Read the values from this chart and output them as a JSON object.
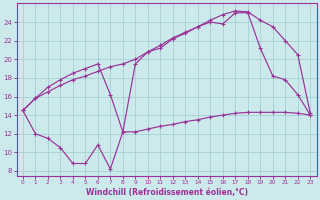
{
  "bg_color": "#cce9eb",
  "grid_color": "#aad4d8",
  "line_color": "#993399",
  "xlabel": "Windchill (Refroidissement éolien,°C)",
  "xlim": [
    -0.5,
    23.5
  ],
  "ylim": [
    7.5,
    26.0
  ],
  "yticks": [
    8,
    10,
    12,
    14,
    16,
    18,
    20,
    22,
    24
  ],
  "xticks": [
    0,
    1,
    2,
    3,
    4,
    5,
    6,
    7,
    8,
    9,
    10,
    11,
    12,
    13,
    14,
    15,
    16,
    17,
    18,
    19,
    20,
    21,
    22,
    23
  ],
  "line1_x": [
    0,
    1,
    2,
    3,
    4,
    5,
    6,
    7,
    8,
    9,
    10,
    11,
    12,
    13,
    14,
    15,
    16,
    17,
    18,
    19,
    20,
    21,
    22,
    23
  ],
  "line1_y": [
    14.5,
    15.8,
    16.5,
    17.2,
    17.8,
    18.2,
    18.7,
    19.2,
    19.5,
    20.0,
    20.8,
    21.2,
    22.2,
    22.8,
    23.5,
    24.2,
    24.8,
    25.2,
    25.1,
    24.2,
    23.5,
    22.0,
    20.5,
    14.2
  ],
  "line2_x": [
    0,
    1,
    2,
    3,
    4,
    5,
    6,
    7,
    8,
    9,
    10,
    11,
    12,
    13,
    14,
    15,
    16,
    17,
    18,
    19,
    20,
    21,
    22,
    23
  ],
  "line2_y": [
    14.5,
    15.8,
    17.0,
    17.8,
    18.5,
    19.0,
    19.5,
    16.2,
    12.2,
    19.5,
    20.8,
    21.5,
    22.3,
    22.9,
    23.5,
    24.0,
    23.8,
    25.0,
    25.0,
    21.2,
    18.2,
    17.8,
    16.2,
    14.0
  ],
  "line3_x": [
    0,
    1,
    2,
    3,
    4,
    5,
    6,
    7,
    8,
    9,
    10,
    11,
    12,
    13,
    14,
    15,
    16,
    17,
    18,
    19,
    20,
    21,
    22,
    23
  ],
  "line3_y": [
    14.5,
    12.0,
    11.5,
    10.5,
    8.8,
    8.8,
    10.8,
    8.2,
    12.2,
    12.2,
    12.5,
    12.8,
    13.0,
    13.3,
    13.5,
    13.8,
    14.0,
    14.2,
    14.3,
    14.3,
    14.3,
    14.3,
    14.2,
    14.0
  ]
}
